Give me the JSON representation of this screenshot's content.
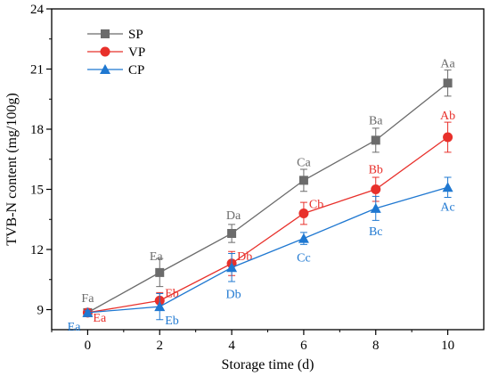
{
  "chart_data": {
    "type": "line",
    "xlabel": "Storage time (d)",
    "ylabel": "TVB-N content (mg/100g)",
    "x": [
      0,
      2,
      4,
      6,
      8,
      10
    ],
    "xticks": [
      "0",
      "2",
      "4",
      "6",
      "8",
      "10"
    ],
    "yticks": [
      "9",
      "12",
      "15",
      "18",
      "21",
      "24"
    ],
    "xlim": [
      -1,
      11
    ],
    "ylim": [
      8,
      24
    ],
    "legend_position": "top-left",
    "series": [
      {
        "name": "SP",
        "color": "#6b6b6b",
        "marker": "square",
        "values": [
          8.85,
          10.85,
          12.8,
          15.45,
          17.45,
          20.3
        ],
        "errors": [
          0.15,
          0.7,
          0.45,
          0.55,
          0.6,
          0.65
        ],
        "labels": [
          "Fa",
          "Ea",
          "Da",
          "Ca",
          "Ba",
          "Aa"
        ]
      },
      {
        "name": "VP",
        "color": "#e8302b",
        "marker": "circle",
        "values": [
          8.85,
          9.45,
          11.3,
          13.8,
          15.0,
          17.6
        ],
        "errors": [
          0.15,
          0.4,
          0.6,
          0.55,
          0.6,
          0.75
        ],
        "labels": [
          "Ea",
          "Eb",
          "Db",
          "Cb",
          "Bb",
          "Ab"
        ]
      },
      {
        "name": "CP",
        "color": "#1f78d1",
        "marker": "triangle",
        "values": [
          8.85,
          9.15,
          11.1,
          12.55,
          14.05,
          15.1
        ],
        "errors": [
          0.1,
          0.65,
          0.7,
          0.3,
          0.6,
          0.5
        ],
        "labels": [
          "Ea",
          "Eb",
          "Db",
          "Cc",
          "Bc",
          "Ac"
        ]
      }
    ]
  }
}
